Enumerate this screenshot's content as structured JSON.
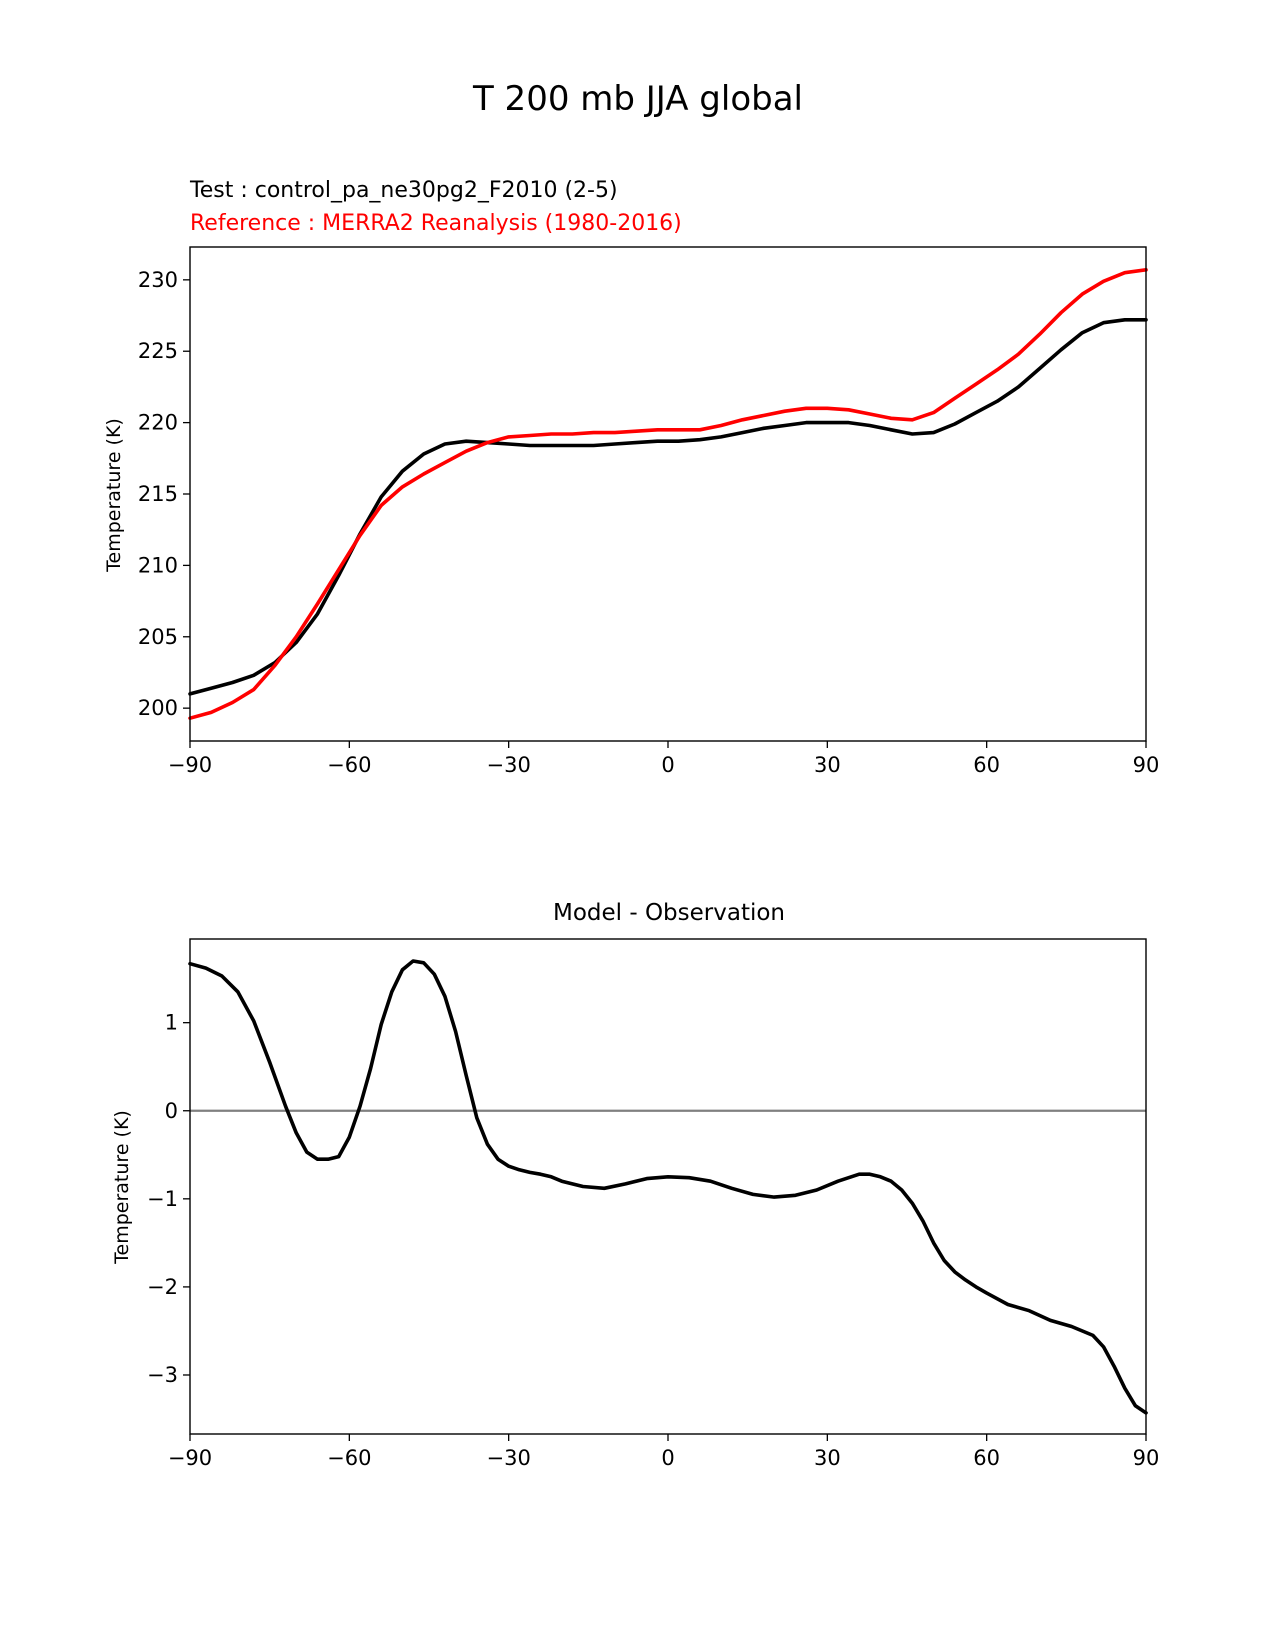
{
  "figure": {
    "title": "T 200 mb JJA global"
  },
  "colors": {
    "test": "#000000",
    "reference": "#ff0000",
    "zero_line": "#808080",
    "axes": "#000000"
  },
  "chart_data": [
    {
      "type": "line",
      "test_label": "Test : control_pa_ne30pg2_F2010 (2-5)",
      "reference_label": "Reference : MERRA2 Reanalysis (1980-2016)",
      "xlabel": "",
      "ylabel": "Temperature (K)",
      "xlim": [
        -90,
        90
      ],
      "ylim": [
        197.7,
        232.3
      ],
      "xticks": [
        -90,
        -60,
        -30,
        0,
        30,
        60,
        90
      ],
      "xtick_labels": [
        "−90",
        "−60",
        "−30",
        "0",
        "30",
        "60",
        "90"
      ],
      "yticks": [
        200,
        205,
        210,
        215,
        220,
        225,
        230
      ],
      "ytick_labels": [
        "200",
        "205",
        "210",
        "215",
        "220",
        "225",
        "230"
      ],
      "series": [
        {
          "name": "Test : control_pa_ne30pg2_F2010 (2-5)",
          "color": "#000000",
          "x": [
            -90,
            -86,
            -82,
            -78,
            -74,
            -70,
            -66,
            -62,
            -58,
            -54,
            -50,
            -46,
            -42,
            -38,
            -34,
            -30,
            -26,
            -22,
            -18,
            -14,
            -10,
            -6,
            -2,
            2,
            6,
            10,
            14,
            18,
            22,
            26,
            30,
            34,
            38,
            42,
            46,
            50,
            54,
            58,
            62,
            66,
            70,
            74,
            78,
            82,
            86,
            90
          ],
          "y": [
            201.0,
            201.4,
            201.8,
            202.3,
            203.2,
            204.6,
            206.6,
            209.3,
            212.2,
            214.8,
            216.6,
            217.8,
            218.5,
            218.7,
            218.6,
            218.5,
            218.4,
            218.4,
            218.4,
            218.4,
            218.5,
            218.6,
            218.7,
            218.7,
            218.8,
            219.0,
            219.3,
            219.6,
            219.8,
            220.0,
            220.0,
            220.0,
            219.8,
            219.5,
            219.2,
            219.3,
            219.9,
            220.7,
            221.5,
            222.5,
            223.8,
            225.1,
            226.3,
            227.0,
            227.2,
            227.2
          ]
        },
        {
          "name": "Reference : MERRA2 Reanalysis (1980-2016)",
          "color": "#ff0000",
          "x": [
            -90,
            -86,
            -82,
            -78,
            -74,
            -70,
            -66,
            -62,
            -58,
            -54,
            -50,
            -46,
            -42,
            -38,
            -34,
            -30,
            -26,
            -22,
            -18,
            -14,
            -10,
            -6,
            -2,
            2,
            6,
            10,
            14,
            18,
            22,
            26,
            30,
            34,
            38,
            42,
            46,
            50,
            54,
            58,
            62,
            66,
            70,
            74,
            78,
            82,
            86,
            90
          ],
          "y": [
            199.3,
            199.7,
            200.4,
            201.3,
            203.0,
            205.0,
            207.3,
            209.7,
            212.1,
            214.2,
            215.5,
            216.4,
            217.2,
            218.0,
            218.6,
            219.0,
            219.1,
            219.2,
            219.2,
            219.3,
            219.3,
            219.4,
            219.5,
            219.5,
            219.5,
            219.8,
            220.2,
            220.5,
            220.8,
            221.0,
            221.0,
            220.9,
            220.6,
            220.3,
            220.2,
            220.7,
            221.7,
            222.7,
            223.7,
            224.8,
            226.2,
            227.7,
            229.0,
            229.9,
            230.5,
            230.7
          ]
        }
      ]
    },
    {
      "type": "line",
      "title": "Model - Observation",
      "xlabel": "",
      "ylabel": "Temperature (K)",
      "xlim": [
        -90,
        90
      ],
      "ylim": [
        -3.67,
        1.95
      ],
      "xticks": [
        -90,
        -60,
        -30,
        0,
        30,
        60,
        90
      ],
      "xtick_labels": [
        "−90",
        "−60",
        "−30",
        "0",
        "30",
        "60",
        "90"
      ],
      "yticks": [
        -3,
        -2,
        -1,
        0,
        1
      ],
      "ytick_labels": [
        "−3",
        "−2",
        "−1",
        "0",
        "1"
      ],
      "zero_line": 0,
      "series": [
        {
          "name": "Model - Observation",
          "color": "#000000",
          "x": [
            -90,
            -87,
            -84,
            -81,
            -78,
            -75,
            -72,
            -70,
            -68,
            -66,
            -64,
            -62,
            -60,
            -58,
            -56,
            -54,
            -52,
            -50,
            -48,
            -46,
            -44,
            -42,
            -40,
            -38,
            -36,
            -34,
            -32,
            -30,
            -28,
            -26,
            -24,
            -22,
            -20,
            -16,
            -12,
            -8,
            -4,
            0,
            4,
            8,
            12,
            16,
            20,
            24,
            28,
            32,
            36,
            38,
            40,
            42,
            44,
            46,
            48,
            50,
            52,
            54,
            56,
            58,
            60,
            64,
            68,
            72,
            76,
            80,
            82,
            84,
            86,
            88,
            90
          ],
          "y": [
            1.67,
            1.62,
            1.53,
            1.35,
            1.02,
            0.55,
            0.05,
            -0.25,
            -0.47,
            -0.55,
            -0.55,
            -0.52,
            -0.3,
            0.05,
            0.48,
            0.98,
            1.35,
            1.6,
            1.7,
            1.68,
            1.55,
            1.3,
            0.9,
            0.4,
            -0.08,
            -0.38,
            -0.55,
            -0.63,
            -0.67,
            -0.7,
            -0.72,
            -0.75,
            -0.8,
            -0.86,
            -0.88,
            -0.83,
            -0.77,
            -0.75,
            -0.76,
            -0.8,
            -0.88,
            -0.95,
            -0.98,
            -0.96,
            -0.9,
            -0.8,
            -0.72,
            -0.72,
            -0.75,
            -0.8,
            -0.9,
            -1.05,
            -1.25,
            -1.5,
            -1.7,
            -1.83,
            -1.92,
            -2.0,
            -2.07,
            -2.2,
            -2.27,
            -2.38,
            -2.45,
            -2.55,
            -2.68,
            -2.9,
            -3.15,
            -3.35,
            -3.43
          ]
        }
      ]
    }
  ]
}
